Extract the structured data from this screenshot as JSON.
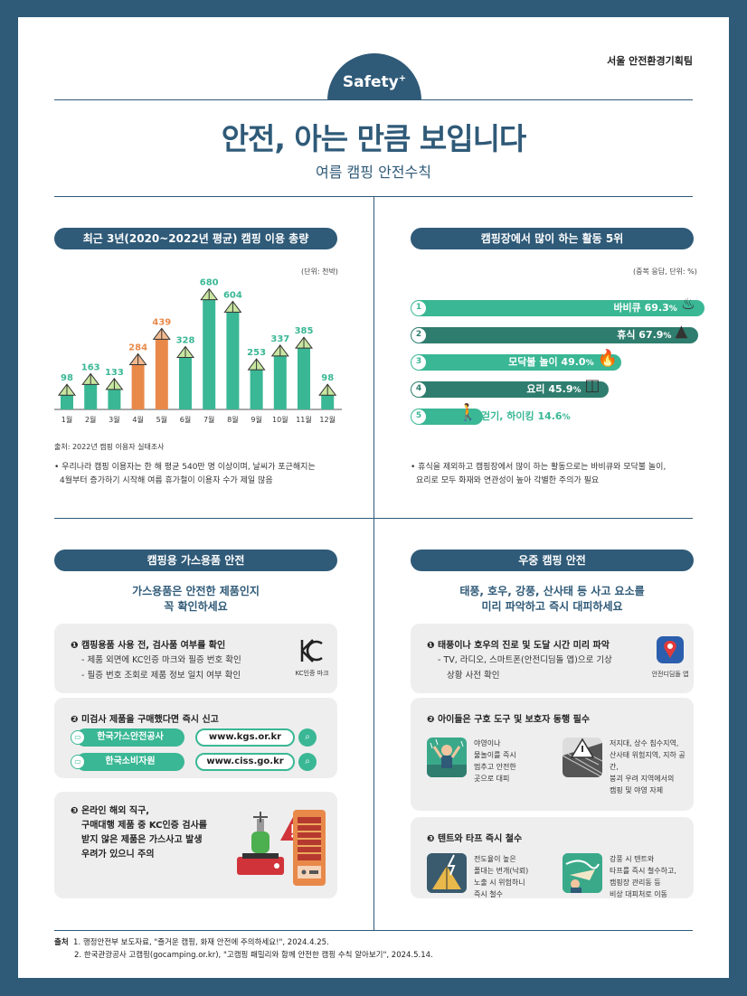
{
  "header": {
    "department": "서울 안전환경기획팀",
    "badge": "Safety",
    "badge_plus": "+",
    "title": "안전, 아는 만큼 보입니다",
    "subtitle": "여름 캠핑 안전수칙"
  },
  "usage": {
    "heading": "최근 3년(2020~2022년 평균) 캠핑 이용 총량",
    "unit": "(단위: 천박)",
    "source": "출처: 2022년 캠핑 이용자 실태조사",
    "note_line1": "• 우리나라 캠핑 이용자는 한 해 평균 540만 명 이상이며, 날씨가 포근해지는",
    "note_line2": "4월부터 증가하기 시작해 여름 휴가철이 이용자 수가 제일 많음"
  },
  "chart_data": {
    "type": "bar",
    "title": "최근 3년(2020~2022년 평균) 캠핑 이용 총량",
    "unit": "(단위: 천박)",
    "categories": [
      "1월",
      "2월",
      "3월",
      "4월",
      "5월",
      "6월",
      "7월",
      "8월",
      "9월",
      "10월",
      "11월",
      "12월"
    ],
    "values": [
      98,
      163,
      133,
      284,
      439,
      328,
      680,
      604,
      253,
      337,
      385,
      98
    ],
    "highlight": [
      false,
      false,
      false,
      true,
      true,
      false,
      false,
      false,
      false,
      false,
      false,
      false
    ],
    "colors": {
      "normal": "#3ab795",
      "highlight": "#e8894a",
      "normal_label": "#3ab795",
      "highlight_label": "#e8894a"
    },
    "ylim": [
      0,
      700
    ]
  },
  "activities": {
    "heading": "캠핑장에서 많이 하는 활동 5위",
    "unit": "(중복 응답, 단위: %)",
    "items": [
      {
        "rank": "1",
        "label": "바비큐",
        "value": "69.3",
        "pct": "%",
        "percent": 69.3,
        "color": "#3ab795",
        "icon": "grill-icon",
        "glyph": "♨"
      },
      {
        "rank": "2",
        "label": "휴식",
        "value": "67.9",
        "pct": "%",
        "percent": 67.9,
        "color": "#2f7d6e",
        "icon": "tent-icon",
        "glyph": "▲"
      },
      {
        "rank": "3",
        "label": "모닥불 놀이",
        "value": "49.0",
        "pct": "%",
        "percent": 49.0,
        "color": "#3ab795",
        "icon": "campfire-icon",
        "glyph": "🔥"
      },
      {
        "rank": "4",
        "label": "요리",
        "value": "45.9",
        "pct": "%",
        "percent": 45.9,
        "color": "#2f7d6e",
        "icon": "pot-icon",
        "glyph": "◫"
      },
      {
        "rank": "5",
        "label": "걷기, 하이킹",
        "value": "14.6",
        "pct": "%",
        "percent": 14.6,
        "color": "#3ab795",
        "icon": "hiker-icon",
        "glyph": "🚶"
      }
    ],
    "note_line1": "• 휴식을 제외하고 캠핑장에서 많이 하는 활동으로는 바비큐와 모닥불 놀이,",
    "note_line2": "요리로 모두 화재와 연관성이 높아 각별한 주의가 필요"
  },
  "gas": {
    "heading": "캠핑용 가스용품 안전",
    "lead_line1": "가스용품은 안전한 제품인지",
    "lead_line2": "꼭 확인하세요",
    "item1_title": "❶ 캠핑용품 사용 전, 검사품 여부를 확인",
    "item1_line1": "- 제품 외면에 KC인증 마크와 필증 번호 확인",
    "item1_line2": "- 필증 번호 조회로 제품 정보 일치 여부 확인",
    "kc_caption": "KC인증 마크",
    "item2_title": "❷ 미검사 제품을 구매했다면 즉시 신고",
    "links": [
      {
        "name": "한국가스안전공사",
        "url": "www.kgs.or.kr"
      },
      {
        "name": "한국소비자원",
        "url": "www.ciss.go.kr"
      }
    ],
    "item3_line1": "❸ 온라인 해외 직구,",
    "item3_line2": "구매대행 제품 중 KC인증 검사를",
    "item3_line3": "받지 않은 제품은 가스사고 발생",
    "item3_line4": "우려가 있으니 주의"
  },
  "rain": {
    "heading": "우중 캠핑 안전",
    "lead_line1": "태풍, 호우, 강풍, 산사태 등 사고 요소를",
    "lead_line2": "미리 파악하고 즉시 대피하세요",
    "item1_title": "❶ 태풍이나 호우의 진로 및 도달 시간 미리 파악",
    "item1_line1": "- TV, 라디오, 스마트폰(안전디딤돌 앱)으로 기상",
    "item1_line2": "상황 사전 확인",
    "app_caption": "안전디딤돌 앱",
    "item2_title": "❷ 아이들은 구호 도구 및 보호자 동행 필수",
    "item2_a": [
      "야영이나",
      "물놀이를 즉시",
      "멈추고 안전한",
      "곳으로 대피"
    ],
    "item2_b": [
      "저지대, 상수 침수지역,",
      "산사태 위험지역, 지하 공간,",
      "붕괴 우려 지역에서의",
      "캠핑 및 야영 자제"
    ],
    "item3_title": "❸ 텐트와 타프 즉시 철수",
    "item3_a": [
      "전도율이 높은",
      "폴대는 번개(낙뢰)",
      "노출 시 위험하니",
      "즉시 철수"
    ],
    "item3_b": [
      "강풍 시 텐트와",
      "타프를 즉시 철수하고,",
      "캠핑장 관리동 등",
      "비상 대피처로 이동"
    ]
  },
  "footer": {
    "label": "출처",
    "ref1": "1. 행정안전부 보도자료, \"즐거운 캠핑, 화재 안전에 주의하세요!\", 2024.4.25.",
    "ref2": "2. 한국관광공사 고캠핑(gocamping.or.kr), \"고캠핑 패밀리와 함께 안전한 캠핑 수칙 알아보기\", 2024.5.14."
  }
}
